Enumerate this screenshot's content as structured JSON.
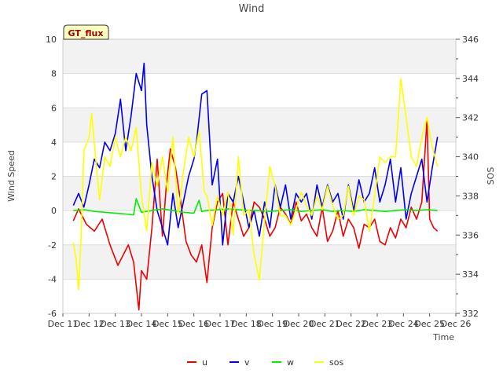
{
  "chart_data": {
    "type": "line",
    "title": "Wind",
    "badge": "GT_flux",
    "xlabel": "Time",
    "ylabel": "Wind Speed",
    "y2label": "SOS",
    "ylim": [
      -6,
      10
    ],
    "y2lim": [
      332,
      346
    ],
    "xlim": [
      11,
      26
    ],
    "yticks": [
      -6,
      -4,
      -2,
      0,
      2,
      4,
      6,
      8,
      10
    ],
    "y2ticks": [
      332,
      334,
      336,
      338,
      340,
      342,
      344,
      346
    ],
    "xticks": [
      {
        "v": 11,
        "label": "Dec 11"
      },
      {
        "v": 12,
        "label": "Dec 12"
      },
      {
        "v": 13,
        "label": "Dec 13"
      },
      {
        "v": 14,
        "label": "Dec 14"
      },
      {
        "v": 15,
        "label": "Dec 15"
      },
      {
        "v": 16,
        "label": "Dec 16"
      },
      {
        "v": 17,
        "label": "Dec 17"
      },
      {
        "v": 18,
        "label": "Dec 18"
      },
      {
        "v": 19,
        "label": "Dec 19"
      },
      {
        "v": 20,
        "label": "Dec 20"
      },
      {
        "v": 21,
        "label": "Dec 21"
      },
      {
        "v": 22,
        "label": "Dec 22"
      },
      {
        "v": 23,
        "label": "Dec 23"
      },
      {
        "v": 24,
        "label": "Dec 24"
      },
      {
        "v": 25,
        "label": "Dec 25"
      },
      {
        "v": 26,
        "label": "Dec 26"
      }
    ],
    "legend_position": "bottom-center",
    "series": [
      {
        "name": "u",
        "color": "#ee0000",
        "axis": "left",
        "x": [
          11.4,
          11.6,
          11.9,
          12.2,
          12.5,
          12.8,
          13.1,
          13.3,
          13.5,
          13.7,
          13.9,
          14.0,
          14.2,
          14.4,
          14.6,
          14.8,
          14.95,
          15.1,
          15.3,
          15.5,
          15.7,
          15.9,
          16.1,
          16.3,
          16.5,
          16.7,
          16.9,
          17.1,
          17.3,
          17.5,
          17.7,
          17.9,
          18.1,
          18.3,
          18.5,
          18.7,
          18.9,
          19.1,
          19.3,
          19.5,
          19.7,
          19.9,
          20.1,
          20.3,
          20.5,
          20.7,
          20.9,
          21.1,
          21.3,
          21.5,
          21.7,
          21.9,
          22.1,
          22.3,
          22.5,
          22.7,
          22.9,
          23.1,
          23.3,
          23.5,
          23.7,
          23.9,
          24.1,
          24.3,
          24.5,
          24.7,
          24.9,
          25.0,
          25.15,
          25.3
        ],
        "y": [
          -0.6,
          0.1,
          -0.8,
          -1.2,
          -0.5,
          -2.0,
          -3.2,
          -2.6,
          -2.0,
          -3.0,
          -5.8,
          -3.5,
          -4.0,
          -1.0,
          3.0,
          -1.5,
          1.5,
          3.6,
          2.5,
          0.5,
          -1.8,
          -2.6,
          -3.0,
          -2.0,
          -4.2,
          -1.0,
          0.5,
          1.0,
          -2.0,
          0.5,
          -0.5,
          -1.5,
          -1.0,
          0.5,
          0.2,
          -0.5,
          -1.5,
          -1.0,
          0.2,
          -0.2,
          -0.8,
          0.5,
          -0.6,
          -0.2,
          -1.0,
          -1.5,
          0.2,
          -1.8,
          -1.2,
          0.0,
          -1.5,
          -0.5,
          -1.0,
          -2.2,
          -0.8,
          -1.0,
          -0.5,
          -1.8,
          -2.0,
          -1.0,
          -1.6,
          -0.5,
          -1.0,
          0.2,
          -0.5,
          0.5,
          5.3,
          -0.5,
          -1.0,
          -1.2
        ]
      },
      {
        "name": "v",
        "color": "#0000ee",
        "axis": "left",
        "x": [
          11.4,
          11.6,
          11.8,
          12.0,
          12.2,
          12.4,
          12.6,
          12.8,
          13.0,
          13.2,
          13.4,
          13.6,
          13.8,
          14.0,
          14.1,
          14.2,
          14.4,
          14.6,
          14.8,
          15.0,
          15.2,
          15.4,
          15.6,
          15.8,
          16.0,
          16.1,
          16.3,
          16.5,
          16.7,
          16.9,
          17.1,
          17.3,
          17.5,
          17.7,
          17.9,
          18.1,
          18.3,
          18.5,
          18.7,
          18.9,
          19.1,
          19.3,
          19.5,
          19.7,
          19.9,
          20.1,
          20.3,
          20.5,
          20.7,
          20.9,
          21.1,
          21.3,
          21.5,
          21.7,
          21.9,
          22.1,
          22.3,
          22.5,
          22.7,
          22.9,
          23.1,
          23.3,
          23.5,
          23.7,
          23.9,
          24.1,
          24.3,
          24.5,
          24.7,
          24.9,
          25.1,
          25.3
        ],
        "y": [
          0.3,
          1.0,
          0.2,
          1.5,
          3.0,
          2.5,
          4.0,
          3.5,
          4.5,
          6.5,
          3.5,
          5.5,
          8.0,
          7.0,
          8.6,
          5.0,
          2.0,
          0.0,
          -1.0,
          -2.0,
          1.0,
          -1.0,
          0.5,
          2.0,
          3.0,
          4.0,
          6.8,
          7.0,
          1.5,
          3.0,
          -2.0,
          1.0,
          0.5,
          2.0,
          0.5,
          -1.0,
          0.0,
          -1.5,
          0.5,
          -1.0,
          1.5,
          0.2,
          1.5,
          -0.5,
          1.0,
          0.5,
          1.0,
          -0.5,
          1.5,
          0.2,
          1.5,
          0.5,
          1.0,
          -0.5,
          1.5,
          0.0,
          1.8,
          0.5,
          1.0,
          2.5,
          0.5,
          1.5,
          3.0,
          0.5,
          2.5,
          -0.5,
          1.0,
          2.0,
          3.0,
          0.5,
          2.5,
          4.3
        ]
      },
      {
        "name": "w",
        "color": "#00ee00",
        "axis": "left",
        "x": [
          11.4,
          11.8,
          12.2,
          12.6,
          13.0,
          13.4,
          13.7,
          13.8,
          14.0,
          14.4,
          14.8,
          15.2,
          15.6,
          16.0,
          16.2,
          16.3,
          16.5,
          16.9,
          17.3,
          17.7,
          18.1,
          18.5,
          18.9,
          19.3,
          19.7,
          20.1,
          20.5,
          20.9,
          21.3,
          21.7,
          22.1,
          22.5,
          22.9,
          23.3,
          23.7,
          24.1,
          24.5,
          24.9,
          25.3
        ],
        "y": [
          0.0,
          0.05,
          -0.05,
          -0.1,
          -0.15,
          -0.2,
          -0.25,
          0.7,
          -0.1,
          0.0,
          0.1,
          0.0,
          -0.1,
          -0.15,
          0.6,
          -0.05,
          0.0,
          0.05,
          0.1,
          0.05,
          0.0,
          0.0,
          -0.05,
          0.0,
          0.05,
          -0.05,
          0.0,
          0.05,
          -0.05,
          0.0,
          -0.05,
          0.05,
          0.0,
          -0.05,
          0.0,
          0.05,
          0.0,
          0.05,
          0.0
        ]
      },
      {
        "name": "sos",
        "color": "#ffff00",
        "axis": "right",
        "x": [
          11.4,
          11.5,
          11.6,
          11.7,
          11.8,
          12.0,
          12.1,
          12.3,
          12.4,
          12.6,
          12.8,
          13.0,
          13.2,
          13.4,
          13.6,
          13.8,
          14.0,
          14.2,
          14.4,
          14.6,
          14.8,
          15.0,
          15.2,
          15.4,
          15.6,
          15.8,
          16.0,
          16.2,
          16.4,
          16.5,
          16.7,
          16.9,
          17.1,
          17.3,
          17.5,
          17.7,
          17.9,
          18.1,
          18.3,
          18.5,
          18.7,
          18.9,
          19.1,
          19.3,
          19.5,
          19.7,
          19.9,
          20.1,
          20.3,
          20.5,
          20.7,
          20.9,
          21.1,
          21.3,
          21.5,
          21.7,
          21.9,
          22.1,
          22.3,
          22.5,
          22.7,
          22.9,
          23.1,
          23.3,
          23.5,
          23.7,
          23.9,
          24.1,
          24.3,
          24.5,
          24.7,
          24.9,
          25.1,
          25.3
        ],
        "y": [
          335.6,
          334.8,
          333.2,
          336.0,
          340.3,
          341.0,
          342.2,
          339.2,
          337.8,
          340.0,
          339.5,
          341.0,
          340.0,
          341.0,
          340.3,
          341.5,
          338.0,
          336.2,
          339.7,
          338.5,
          340.0,
          338.2,
          341.0,
          337.0,
          339.2,
          341.0,
          340.0,
          341.3,
          338.2,
          338.0,
          336.5,
          338.0,
          337.0,
          338.2,
          336.0,
          340.0,
          337.0,
          337.3,
          335.0,
          333.7,
          336.8,
          339.5,
          338.5,
          337.0,
          337.0,
          336.5,
          337.3,
          338.2,
          337.5,
          337.0,
          338.0,
          337.3,
          338.5,
          337.5,
          336.8,
          337.0,
          338.5,
          337.0,
          338.0,
          337.8,
          336.2,
          338.0,
          340.0,
          339.7,
          340.0,
          340.0,
          344.0,
          342.0,
          340.0,
          339.5,
          341.0,
          342.0,
          340.5,
          339.5
        ]
      }
    ]
  }
}
